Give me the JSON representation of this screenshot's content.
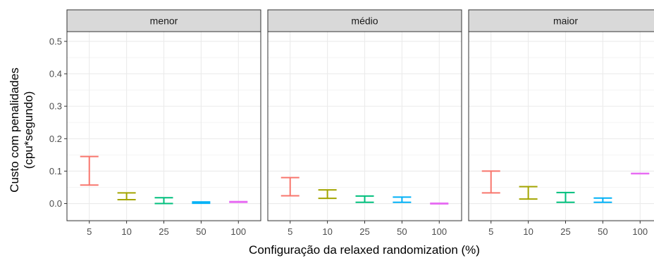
{
  "chart_data": {
    "type": "errorbar",
    "xlabel": "Configuração da relaxed randomization (%)",
    "ylabel_lines": [
      "Custo com penalidades",
      "(cpu*segundo)"
    ],
    "ylim": [
      -0.053,
      0.53
    ],
    "y_ticks": [
      "0.0",
      "0.1",
      "0.2",
      "0.3",
      "0.4",
      "0.5"
    ],
    "categories": [
      "5",
      "10",
      "25",
      "50",
      "100"
    ],
    "category_colors": [
      "#F8766D",
      "#A3A500",
      "#00BF7D",
      "#00B0F6",
      "#E76BF3"
    ],
    "panels": [
      {
        "name": "menor",
        "intervals": [
          {
            "category": "5",
            "low": 0.057,
            "high": 0.145
          },
          {
            "category": "10",
            "low": 0.012,
            "high": 0.033
          },
          {
            "category": "25",
            "low": 0.0,
            "high": 0.018
          },
          {
            "category": "50",
            "low": 0.001,
            "high": 0.005
          },
          {
            "category": "100",
            "low": 0.004,
            "high": 0.006
          }
        ]
      },
      {
        "name": "médio",
        "intervals": [
          {
            "category": "5",
            "low": 0.024,
            "high": 0.08
          },
          {
            "category": "10",
            "low": 0.016,
            "high": 0.042
          },
          {
            "category": "25",
            "low": 0.004,
            "high": 0.023
          },
          {
            "category": "50",
            "low": 0.004,
            "high": 0.02
          },
          {
            "category": "100",
            "low": -0.001,
            "high": 0.001
          }
        ]
      },
      {
        "name": "maior",
        "intervals": [
          {
            "category": "5",
            "low": 0.033,
            "high": 0.1
          },
          {
            "category": "10",
            "low": 0.014,
            "high": 0.052
          },
          {
            "category": "25",
            "low": 0.004,
            "high": 0.034
          },
          {
            "category": "50",
            "low": 0.004,
            "high": 0.017
          },
          {
            "category": "100",
            "low": 0.092,
            "high": 0.093
          }
        ]
      }
    ],
    "grid": true
  }
}
